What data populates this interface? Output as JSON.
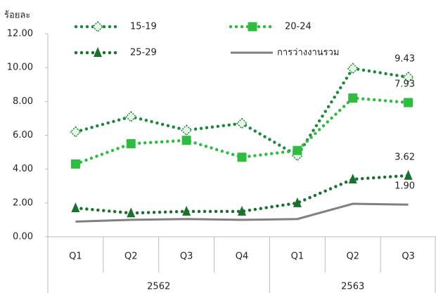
{
  "chart_data": {
    "type": "line",
    "y_label": "ร้อยละ",
    "categories": [
      "Q1",
      "Q2",
      "Q3",
      "Q4",
      "Q1",
      "Q2",
      "Q3"
    ],
    "groups": [
      {
        "label": "2562",
        "span": 4
      },
      {
        "label": "2563",
        "span": 3
      }
    ],
    "ylim": [
      0,
      12
    ],
    "yticks": [
      {
        "value": 0,
        "label": "0.00"
      },
      {
        "value": 2,
        "label": "2.00"
      },
      {
        "value": 4,
        "label": "4.00"
      },
      {
        "value": 6,
        "label": "6.00"
      },
      {
        "value": 8,
        "label": "8.00"
      },
      {
        "value": 10,
        "label": "10.00"
      },
      {
        "value": 12,
        "label": "12.00"
      }
    ],
    "series": [
      {
        "name": "15-19",
        "color": "#1a8a3a",
        "marker": "diamond",
        "values": [
          6.2,
          7.1,
          6.3,
          6.7,
          4.8,
          9.95,
          9.43
        ],
        "value_labels": [
          null,
          null,
          null,
          null,
          null,
          null,
          "9.43"
        ]
      },
      {
        "name": "20-24",
        "color": "#2ebd3f",
        "marker": "square",
        "values": [
          4.3,
          5.5,
          5.7,
          4.7,
          5.1,
          8.2,
          7.93
        ],
        "value_labels": [
          null,
          null,
          null,
          null,
          null,
          null,
          "7.93"
        ]
      },
      {
        "name": "25-29",
        "color": "#17722e",
        "marker": "triangle",
        "values": [
          1.7,
          1.4,
          1.5,
          1.5,
          2.0,
          3.4,
          3.62
        ],
        "value_labels": [
          null,
          null,
          null,
          null,
          null,
          null,
          "3.62"
        ]
      },
      {
        "name": "การว่างงานรวม",
        "color": "#808080",
        "marker": "none",
        "values": [
          0.9,
          1.0,
          1.05,
          1.0,
          1.05,
          1.95,
          1.9
        ],
        "value_labels": [
          null,
          null,
          null,
          null,
          null,
          null,
          "1.90"
        ]
      }
    ]
  }
}
